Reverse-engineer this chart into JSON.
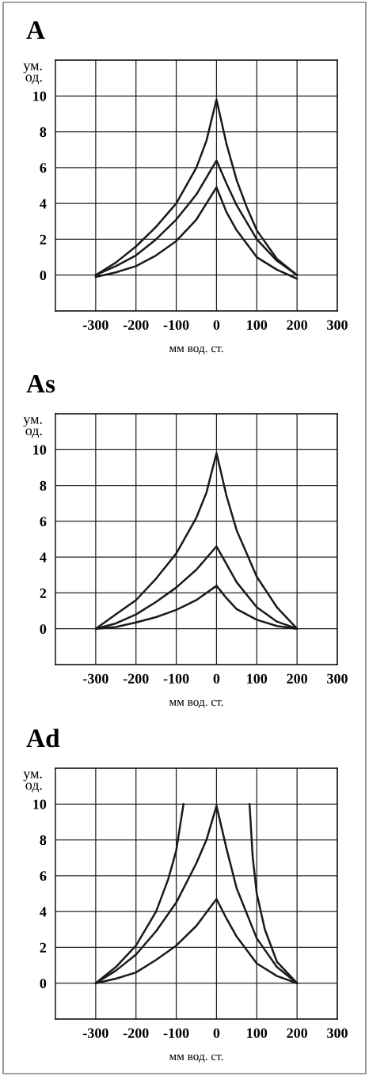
{
  "chart_data": [
    {
      "type": "line",
      "title": "A",
      "xlabel": "мм вод. ст.",
      "ylabel": "ум.\nод.",
      "xlim": [
        -400,
        300
      ],
      "ylim": [
        -2,
        12
      ],
      "xticks": [
        -300,
        -200,
        -100,
        0,
        100,
        200,
        300
      ],
      "yticks": [
        0,
        2,
        4,
        6,
        8,
        10
      ],
      "grid": true,
      "legend": false,
      "marker": "none",
      "line_style": "solid",
      "series": [
        {
          "color": "#1a1a1a",
          "x": [
            -300,
            -250,
            -200,
            -150,
            -100,
            -50,
            -25,
            0,
            25,
            50,
            75,
            100,
            150,
            200
          ],
          "values": [
            0,
            0.7,
            1.6,
            2.7,
            4.0,
            6.0,
            7.5,
            9.8,
            7.3,
            5.3,
            3.8,
            2.5,
            0.9,
            0
          ]
        },
        {
          "color": "#1a1a1a",
          "x": [
            -300,
            -250,
            -200,
            -150,
            -100,
            -50,
            0,
            25,
            50,
            100,
            150,
            200
          ],
          "values": [
            0,
            0.5,
            1.1,
            2.0,
            3.1,
            4.5,
            6.4,
            5.1,
            3.9,
            2.0,
            0.8,
            0
          ]
        },
        {
          "color": "#1a1a1a",
          "x": [
            -300,
            -250,
            -200,
            -150,
            -100,
            -50,
            0,
            25,
            50,
            100,
            150,
            200
          ],
          "values": [
            -0.1,
            0.15,
            0.5,
            1.1,
            1.9,
            3.1,
            4.9,
            3.5,
            2.5,
            1.0,
            0.3,
            -0.2
          ]
        }
      ]
    },
    {
      "type": "line",
      "title": "As",
      "xlabel": "мм вод. ст.",
      "ylabel": "ум.\nод.",
      "xlim": [
        -400,
        300
      ],
      "ylim": [
        -2,
        12
      ],
      "xticks": [
        -300,
        -200,
        -100,
        0,
        100,
        200,
        300
      ],
      "yticks": [
        0,
        2,
        4,
        6,
        8,
        10
      ],
      "grid": true,
      "legend": false,
      "marker": "none",
      "line_style": "solid",
      "series": [
        {
          "color": "#1a1a1a",
          "x": [
            -300,
            -250,
            -200,
            -150,
            -100,
            -50,
            -25,
            0,
            25,
            50,
            100,
            150,
            200
          ],
          "values": [
            0,
            0.8,
            1.6,
            2.8,
            4.2,
            6.2,
            7.6,
            9.8,
            7.4,
            5.5,
            2.9,
            1.2,
            0
          ]
        },
        {
          "color": "#1a1a1a",
          "x": [
            -300,
            -250,
            -200,
            -150,
            -100,
            -50,
            0,
            25,
            50,
            100,
            150,
            200
          ],
          "values": [
            0,
            0.3,
            0.8,
            1.5,
            2.3,
            3.3,
            4.6,
            3.6,
            2.6,
            1.2,
            0.4,
            0
          ]
        },
        {
          "color": "#1a1a1a",
          "x": [
            -300,
            -250,
            -200,
            -150,
            -100,
            -50,
            0,
            25,
            50,
            100,
            150,
            200
          ],
          "values": [
            0,
            0.1,
            0.35,
            0.65,
            1.05,
            1.6,
            2.4,
            1.7,
            1.1,
            0.5,
            0.15,
            0
          ]
        }
      ]
    },
    {
      "type": "line",
      "title": "Ad",
      "xlabel": "мм вод. ст.",
      "ylabel": "ум.\nод.",
      "xlim": [
        -400,
        300
      ],
      "ylim": [
        -2,
        12
      ],
      "xticks": [
        -300,
        -200,
        -100,
        0,
        100,
        200,
        300
      ],
      "yticks": [
        0,
        2,
        4,
        6,
        8,
        10
      ],
      "grid": true,
      "legend": false,
      "marker": "none",
      "line_style": "solid",
      "series": [
        {
          "color": "#1a1a1a",
          "x": [
            -300,
            -250,
            -200,
            -150,
            -120,
            -100,
            -82,
            0,
            82,
            90,
            100,
            120,
            150,
            200
          ],
          "values": [
            0,
            0.9,
            2.1,
            4.0,
            5.8,
            7.4,
            10,
            null,
            10,
            7.0,
            5.0,
            3.0,
            1.2,
            0
          ]
        },
        {
          "color": "#1a1a1a",
          "x": [
            -300,
            -250,
            -200,
            -150,
            -100,
            -50,
            -25,
            0,
            25,
            50,
            100,
            150,
            200
          ],
          "values": [
            0,
            0.7,
            1.6,
            2.9,
            4.5,
            6.7,
            8.0,
            9.9,
            7.5,
            5.3,
            2.5,
            0.9,
            0
          ]
        },
        {
          "color": "#1a1a1a",
          "x": [
            -300,
            -250,
            -200,
            -150,
            -100,
            -50,
            0,
            25,
            50,
            100,
            150,
            200
          ],
          "values": [
            0,
            0.25,
            0.6,
            1.3,
            2.1,
            3.2,
            4.7,
            3.6,
            2.6,
            1.1,
            0.4,
            0
          ]
        }
      ]
    }
  ]
}
